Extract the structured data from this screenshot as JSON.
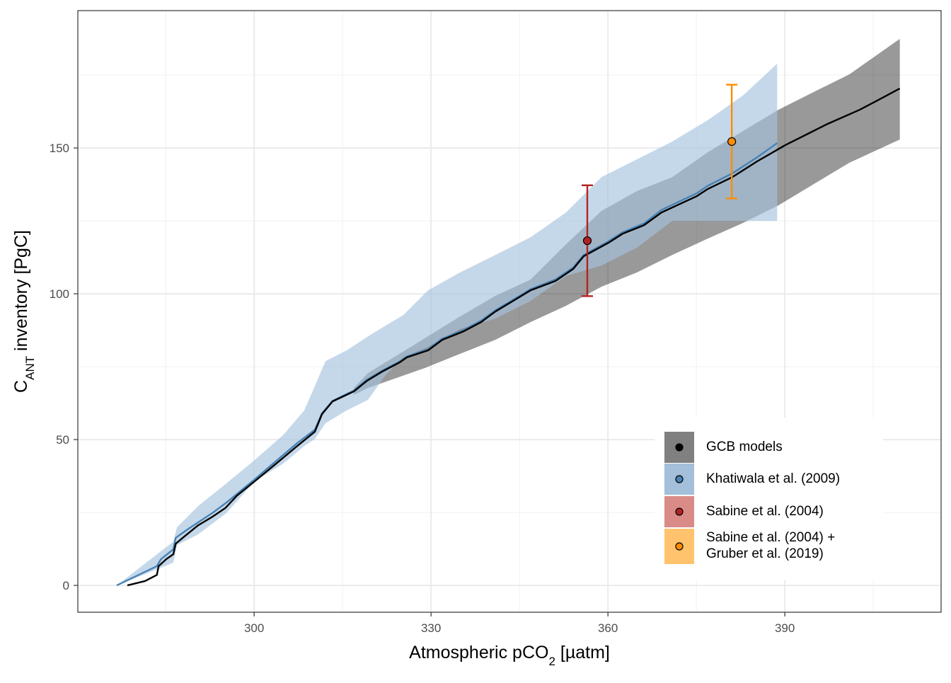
{
  "chart_data": {
    "type": "line",
    "xlabel": [
      "Atmospheric pCO",
      "2",
      " [µatm]"
    ],
    "ylabel": [
      "C",
      "ANT",
      " inventory [PgC]"
    ],
    "xlim": [
      270.1,
      416.5
    ],
    "ylim": [
      -9.2,
      197.1
    ],
    "xticks": [
      300,
      330,
      360,
      390
    ],
    "yticks": [
      0,
      50,
      100,
      150
    ],
    "xminorticks": [
      285,
      315,
      345,
      375,
      405
    ],
    "yminorticks": [
      25,
      75,
      125,
      175
    ],
    "grid": true,
    "legend": "bottom-right",
    "series": [
      {
        "name": "GCB models",
        "color": "#000000",
        "ribbon_color": "#000000",
        "key_color": "#808080",
        "x": [
          278.5,
          281.5,
          283.5,
          283.8,
          285.1,
          286.3,
          286.7,
          288.3,
          290.5,
          292.9,
          295.1,
          297.1,
          300.1,
          303.7,
          307.3,
          310.3,
          311.5,
          313.3,
          316.9,
          319.1,
          321.7,
          324.7,
          325.9,
          329.5,
          331.9,
          335.5,
          338.5,
          340.9,
          343.3,
          346.9,
          351.1,
          354.1,
          355.9,
          360.1,
          362.5,
          366.1,
          369.1,
          375.1,
          376.9,
          381.1,
          385.3,
          390.1,
          397.3,
          402.7,
          405.7,
          409.5
        ],
        "values": [
          0,
          1.5,
          3.6,
          6.6,
          9.0,
          10.7,
          14.3,
          17.0,
          20.6,
          23.5,
          26.5,
          30.8,
          35.7,
          41.7,
          47.8,
          52.7,
          58.7,
          63.1,
          66.5,
          70.1,
          73.3,
          76.5,
          78.2,
          80.6,
          84.2,
          87.1,
          90.3,
          93.9,
          96.8,
          101.2,
          104.4,
          108.5,
          112.9,
          117.5,
          120.6,
          123.5,
          127.9,
          133.5,
          135.9,
          140.0,
          145.4,
          151.0,
          158.3,
          163.1,
          166.3,
          170.4
        ],
        "ribbon": {
          "x": [
            316.9,
            319.3,
            328.9,
            334.9,
            340.9,
            346.9,
            352.9,
            358.9,
            364.9,
            370.9,
            376.9,
            382.9,
            388.9,
            394.9,
            400.9,
            409.5
          ],
          "upper": [
            67.7,
            72.8,
            84.7,
            92.2,
            99.3,
            104.9,
            117.0,
            128.4,
            135.2,
            140.0,
            148.5,
            155.8,
            163.1,
            169.2,
            175.2,
            187.4
          ],
          "lower": [
            65.3,
            67.7,
            74.5,
            79.4,
            84.2,
            90.3,
            95.9,
            102.4,
            107.3,
            113.3,
            118.9,
            124.3,
            130.3,
            137.6,
            144.9,
            152.9
          ]
        }
      },
      {
        "name": "Khatiwala et al. (2009)",
        "color": "#4682b4",
        "ribbon_color": "#a6c3de",
        "key_color": "#a3bfd9",
        "x": [
          276.7,
          283.5,
          284.2,
          286.3,
          286.7,
          288.7,
          292.9,
          295.3,
          300.1,
          307.3,
          310.3,
          311.5,
          313.3,
          316.9,
          319.1,
          321.7,
          324.7,
          325.9,
          329.5,
          331.9,
          335.5,
          338.5,
          340.9,
          343.3,
          346.9,
          351.1,
          354.1,
          355.9,
          360.1,
          362.5,
          366.1,
          369.1,
          375.1,
          376.9,
          381.1,
          385.3,
          388.7
        ],
        "values": [
          0,
          6.6,
          9.0,
          12.4,
          16.3,
          19.2,
          24.8,
          28.4,
          36.4,
          48.8,
          53.4,
          59.0,
          63.3,
          66.8,
          70.5,
          73.6,
          76.8,
          78.5,
          81.0,
          84.6,
          87.6,
          90.8,
          94.3,
          97.2,
          101.6,
          104.9,
          109.0,
          113.3,
          118.0,
          121.1,
          124.1,
          128.8,
          134.5,
          137.0,
          141.3,
          146.8,
          151.7
        ],
        "ribbon": {
          "x": [
            276.7,
            286.3,
            286.9,
            290.5,
            295.3,
            300.1,
            304.9,
            308.5,
            310.3,
            312.1,
            315.7,
            319.3,
            322.3,
            325.3,
            329.5,
            334.9,
            340.9,
            346.9,
            352.9,
            358.9,
            364.9,
            370.9,
            376.9,
            382.9,
            388.7
          ],
          "upper": [
            0,
            15.0,
            19.9,
            27.2,
            35.0,
            43.0,
            51.5,
            60.0,
            68.4,
            76.9,
            80.6,
            85.4,
            89.1,
            92.7,
            101.2,
            107.3,
            113.3,
            119.4,
            127.9,
            140.0,
            146.1,
            152.2,
            159.5,
            168.0,
            178.9
          ],
          "lower": [
            0,
            7.8,
            13.8,
            17.5,
            24.8,
            35.7,
            41.7,
            47.8,
            50.2,
            55.6,
            60.0,
            63.6,
            72.1,
            78.2,
            81.8,
            87.9,
            91.5,
            97.6,
            106.1,
            109.7,
            115.8,
            125.0,
            125.0,
            125.0,
            125.0
          ]
        }
      },
      {
        "name": "Sabine et al. (2004)",
        "color": "#b22222",
        "key_color": "#d98b88",
        "x": [
          356.5
        ],
        "values": [
          118.2
        ],
        "errors": [
          19
        ]
      },
      {
        "name": "Sabine et al. (2004) +\nGruber et al. (2019)",
        "color": "#ff8c00",
        "key_color": "#ffc36e",
        "x": [
          381.0
        ],
        "values": [
          152.2
        ],
        "errors": [
          19.5
        ]
      }
    ]
  }
}
